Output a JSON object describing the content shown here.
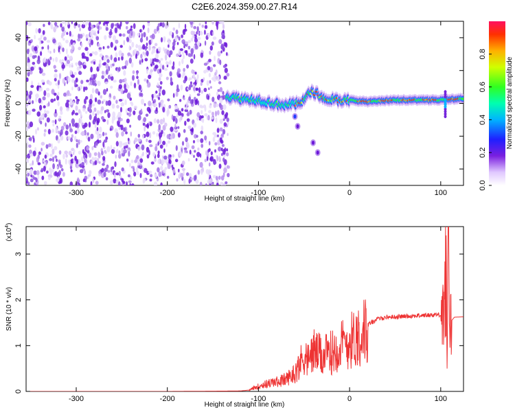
{
  "title": "C2E6.2024.359.00.27.R14",
  "chart_data": [
    {
      "type": "heatmap",
      "xlabel": "Height of straight line (km)",
      "ylabel": "Frequency (Hz)",
      "xlim": [
        -355,
        125
      ],
      "ylim": [
        -50,
        50
      ],
      "x_ticks": [
        -300,
        -200,
        -100,
        0,
        100
      ],
      "y_ticks": [
        -40,
        -20,
        0,
        20,
        40
      ],
      "noise_region_x": [
        -355,
        -133
      ],
      "ridge": [
        {
          "x": -135,
          "y": 4
        },
        {
          "x": -120,
          "y": 3
        },
        {
          "x": -100,
          "y": 2
        },
        {
          "x": -85,
          "y": 0
        },
        {
          "x": -70,
          "y": -1
        },
        {
          "x": -55,
          "y": 0
        },
        {
          "x": -45,
          "y": 6
        },
        {
          "x": -40,
          "y": 7
        },
        {
          "x": -30,
          "y": 4
        },
        {
          "x": -15,
          "y": 2
        },
        {
          "x": 0,
          "y": 2
        },
        {
          "x": 20,
          "y": 1
        },
        {
          "x": 50,
          "y": 2
        },
        {
          "x": 80,
          "y": 2
        },
        {
          "x": 100,
          "y": 2
        },
        {
          "x": 125,
          "y": 3
        }
      ],
      "branch": [
        {
          "x": -60,
          "y": -8
        },
        {
          "x": -57,
          "y": -14
        },
        {
          "x": -40,
          "y": -24
        },
        {
          "x": -35,
          "y": -30
        }
      ],
      "colorbar": {
        "label": "Normalized spectral amplitude",
        "ticks": [
          0.0,
          0.2,
          0.4,
          0.6,
          0.8
        ],
        "range": [
          0,
          1
        ]
      }
    },
    {
      "type": "line",
      "xlabel": "Height of straight line (km)",
      "ylabel": "SNR (10 * v/v)",
      "scale_note": "(x10",
      "scale_exp": "4",
      "scale_close": ")",
      "xlim": [
        -355,
        125
      ],
      "ylim": [
        0,
        3.6
      ],
      "x_ticks": [
        -300,
        -200,
        -100,
        0,
        100
      ],
      "y_ticks": [
        0,
        1,
        2,
        3
      ],
      "color": "#ee3333",
      "series": [
        {
          "values_x": [
            -355,
            -300,
            -200,
            -120,
            -110,
            -100,
            -90,
            -80,
            -70,
            -60,
            -55,
            -50,
            -45,
            -40,
            -30,
            -20,
            -10,
            0,
            10,
            20,
            30,
            40,
            60,
            80,
            100,
            104,
            106,
            107,
            108,
            110,
            115,
            125
          ],
          "values_y": [
            0.0,
            0.0,
            0.0,
            0.01,
            0.03,
            0.12,
            0.18,
            0.22,
            0.28,
            0.42,
            0.62,
            0.85,
            0.7,
            0.95,
            0.8,
            0.9,
            1.05,
            1.15,
            1.3,
            1.45,
            1.58,
            1.62,
            1.64,
            1.66,
            1.68,
            1.75,
            2.9,
            0.4,
            3.6,
            1.5,
            1.62,
            1.63
          ]
        }
      ]
    }
  ]
}
